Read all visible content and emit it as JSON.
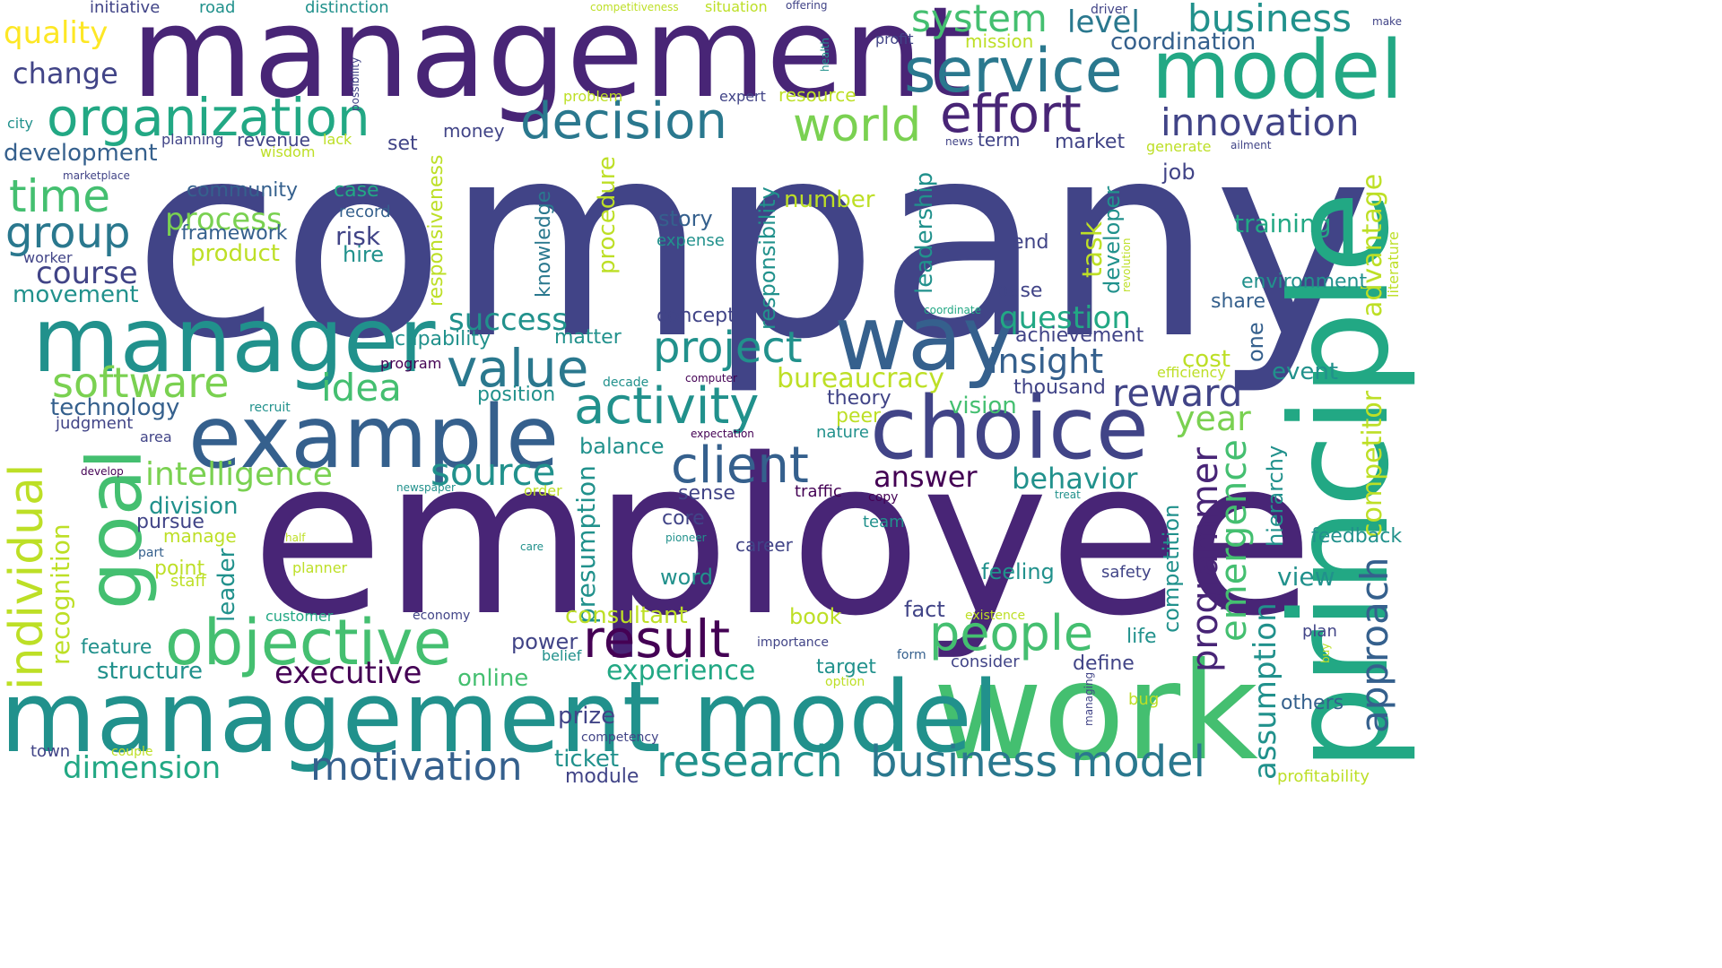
{
  "palette": {
    "c1": "#440154",
    "c2": "#482576",
    "c3": "#414487",
    "c4": "#35608d",
    "c5": "#2a788e",
    "c6": "#21918c",
    "c7": "#22a884",
    "c8": "#44bf70",
    "c9": "#7ad151",
    "c10": "#bddf26",
    "c11": "#fde725"
  },
  "words": [
    {
      "text": "company",
      "color": "#414487"
    },
    {
      "text": "management",
      "color": "#482576"
    },
    {
      "text": "employee",
      "color": "#482576"
    },
    {
      "text": "principle",
      "color": "#22a884"
    },
    {
      "text": "work",
      "color": "#44bf70"
    },
    {
      "text": "management model",
      "color": "#21918c"
    },
    {
      "text": "manager",
      "color": "#21918c"
    },
    {
      "text": "example",
      "color": "#35608d"
    },
    {
      "text": "choice",
      "color": "#414487"
    },
    {
      "text": "way",
      "color": "#35608d"
    },
    {
      "text": "model",
      "color": "#22a884"
    },
    {
      "text": "service",
      "color": "#2a788e"
    },
    {
      "text": "goal",
      "color": "#44bf70"
    },
    {
      "text": "objective",
      "color": "#44bf70"
    },
    {
      "text": "decision",
      "color": "#2a788e"
    },
    {
      "text": "organization",
      "color": "#22a884"
    },
    {
      "text": "effort",
      "color": "#482576"
    },
    {
      "text": "world",
      "color": "#7ad151"
    },
    {
      "text": "activity",
      "color": "#21918c"
    },
    {
      "text": "value",
      "color": "#2a788e"
    },
    {
      "text": "result",
      "color": "#440154"
    },
    {
      "text": "client",
      "color": "#35608d"
    },
    {
      "text": "people",
      "color": "#44bf70"
    },
    {
      "text": "research",
      "color": "#21918c"
    },
    {
      "text": "business model",
      "color": "#2a788e"
    },
    {
      "text": "business",
      "color": "#21918c"
    },
    {
      "text": "system",
      "color": "#44bf70"
    },
    {
      "text": "innovation",
      "color": "#414487"
    },
    {
      "text": "project",
      "color": "#21918c"
    },
    {
      "text": "time",
      "color": "#44bf70"
    },
    {
      "text": "group",
      "color": "#2a788e"
    },
    {
      "text": "software",
      "color": "#7ad151"
    },
    {
      "text": "individual",
      "color": "#bddf26"
    },
    {
      "text": "motivation",
      "color": "#35608d"
    },
    {
      "text": "source",
      "color": "#21918c"
    },
    {
      "text": "idea",
      "color": "#44bf70"
    },
    {
      "text": "reward",
      "color": "#414487"
    },
    {
      "text": "year",
      "color": "#7ad151"
    },
    {
      "text": "approach",
      "color": "#35608d"
    },
    {
      "text": "programmer",
      "color": "#482576"
    },
    {
      "text": "emergence",
      "color": "#44bf70"
    },
    {
      "text": "insight",
      "color": "#35608d"
    },
    {
      "text": "quality",
      "color": "#fde725"
    },
    {
      "text": "change",
      "color": "#414487"
    },
    {
      "text": "intelligence",
      "color": "#7ad151"
    },
    {
      "text": "dimension",
      "color": "#22a884"
    },
    {
      "text": "executive",
      "color": "#440154"
    },
    {
      "text": "experience",
      "color": "#22a884"
    },
    {
      "text": "question",
      "color": "#22a884"
    },
    {
      "text": "success",
      "color": "#21918c"
    },
    {
      "text": "level",
      "color": "#2a788e"
    },
    {
      "text": "coordination",
      "color": "#35608d"
    },
    {
      "text": "process",
      "color": "#7ad151"
    },
    {
      "text": "course",
      "color": "#414487"
    },
    {
      "text": "bureaucracy",
      "color": "#bddf26"
    },
    {
      "text": "competitor",
      "color": "#bddf26"
    },
    {
      "text": "advantage",
      "color": "#bddf26"
    },
    {
      "text": "assumption",
      "color": "#21918c"
    },
    {
      "text": "answer",
      "color": "#440154"
    },
    {
      "text": "behavior",
      "color": "#21918c"
    },
    {
      "text": "activity",
      "color": "#21918c"
    },
    {
      "text": "development",
      "color": "#35608d"
    },
    {
      "text": "movement",
      "color": "#21918c"
    },
    {
      "text": "recognition",
      "color": "#bddf26"
    },
    {
      "text": "presumption",
      "color": "#21918c"
    },
    {
      "text": "consultant",
      "color": "#bddf26"
    },
    {
      "text": "leadership",
      "color": "#21918c"
    },
    {
      "text": "responsibility",
      "color": "#21918c"
    },
    {
      "text": "procedure",
      "color": "#bddf26"
    },
    {
      "text": "knowledge",
      "color": "#2a788e"
    },
    {
      "text": "responsiveness",
      "color": "#bddf26"
    },
    {
      "text": "product",
      "color": "#bddf26"
    },
    {
      "text": "framework",
      "color": "#35608d"
    },
    {
      "text": "community",
      "color": "#35608d"
    },
    {
      "text": "case",
      "color": "#22a884"
    },
    {
      "text": "risk",
      "color": "#414487"
    },
    {
      "text": "hire",
      "color": "#21918c"
    },
    {
      "text": "record",
      "color": "#35608d"
    },
    {
      "text": "story",
      "color": "#35608d"
    },
    {
      "text": "expense",
      "color": "#21918c"
    },
    {
      "text": "number",
      "color": "#bddf26"
    },
    {
      "text": "task",
      "color": "#bddf26"
    },
    {
      "text": "developer",
      "color": "#21918c"
    },
    {
      "text": "end",
      "color": "#414487"
    },
    {
      "text": "base",
      "color": "#414487"
    },
    {
      "text": "job",
      "color": "#414487"
    },
    {
      "text": "training",
      "color": "#22a884"
    },
    {
      "text": "environment",
      "color": "#21918c"
    },
    {
      "text": "share",
      "color": "#35608d"
    },
    {
      "text": "one",
      "color": "#35608d"
    },
    {
      "text": "cost",
      "color": "#bddf26"
    },
    {
      "text": "event",
      "color": "#21918c"
    },
    {
      "text": "thousand",
      "color": "#414487"
    },
    {
      "text": "achievement",
      "color": "#414487"
    },
    {
      "text": "vision",
      "color": "#44bf70"
    },
    {
      "text": "theory",
      "color": "#414487"
    },
    {
      "text": "peer",
      "color": "#bddf26"
    },
    {
      "text": "nature",
      "color": "#21918c"
    },
    {
      "text": "concept",
      "color": "#414487"
    },
    {
      "text": "matter",
      "color": "#21918c"
    },
    {
      "text": "capability",
      "color": "#21918c"
    },
    {
      "text": "program",
      "color": "#440154"
    },
    {
      "text": "position",
      "color": "#21918c"
    },
    {
      "text": "balance",
      "color": "#21918c"
    },
    {
      "text": "technology",
      "color": "#35608d"
    },
    {
      "text": "judgment",
      "color": "#414487"
    },
    {
      "text": "area",
      "color": "#414487"
    },
    {
      "text": "division",
      "color": "#21918c"
    },
    {
      "text": "pursue",
      "color": "#414487"
    },
    {
      "text": "manage",
      "color": "#bddf26"
    },
    {
      "text": "point",
      "color": "#bddf26"
    },
    {
      "text": "staff",
      "color": "#bddf26"
    },
    {
      "text": "part",
      "color": "#35608d"
    },
    {
      "text": "leader",
      "color": "#21918c"
    },
    {
      "text": "feature",
      "color": "#21918c"
    },
    {
      "text": "structure",
      "color": "#21918c"
    },
    {
      "text": "customer",
      "color": "#22a884"
    },
    {
      "text": "power",
      "color": "#414487"
    },
    {
      "text": "belief",
      "color": "#21918c"
    },
    {
      "text": "online",
      "color": "#44bf70"
    },
    {
      "text": "prize",
      "color": "#414487"
    },
    {
      "text": "ticket",
      "color": "#21918c"
    },
    {
      "text": "module",
      "color": "#414487"
    },
    {
      "text": "competency",
      "color": "#414487"
    },
    {
      "text": "economy",
      "color": "#414487"
    },
    {
      "text": "book",
      "color": "#bddf26"
    },
    {
      "text": "fact",
      "color": "#414487"
    },
    {
      "text": "target",
      "color": "#21918c"
    },
    {
      "text": "option",
      "color": "#bddf26"
    },
    {
      "text": "importance",
      "color": "#414487"
    },
    {
      "text": "form",
      "color": "#35608d"
    },
    {
      "text": "consider",
      "color": "#414487"
    },
    {
      "text": "define",
      "color": "#414487"
    },
    {
      "text": "sense",
      "color": "#414487"
    },
    {
      "text": "traffic",
      "color": "#440154"
    },
    {
      "text": "copy",
      "color": "#440154"
    },
    {
      "text": "core",
      "color": "#414487"
    },
    {
      "text": "team",
      "color": "#21918c"
    },
    {
      "text": "career",
      "color": "#414487"
    },
    {
      "text": "word",
      "color": "#21918c"
    },
    {
      "text": "feeling",
      "color": "#21918c"
    },
    {
      "text": "safety",
      "color": "#414487"
    },
    {
      "text": "view",
      "color": "#21918c"
    },
    {
      "text": "hierarchy",
      "color": "#21918c"
    },
    {
      "text": "feedback",
      "color": "#21918c"
    },
    {
      "text": "competition",
      "color": "#21918c"
    },
    {
      "text": "existence",
      "color": "#bddf26"
    },
    {
      "text": "life",
      "color": "#21918c"
    },
    {
      "text": "plan",
      "color": "#414487"
    },
    {
      "text": "buy",
      "color": "#bddf26"
    },
    {
      "text": "bug",
      "color": "#bddf26"
    },
    {
      "text": "managing",
      "color": "#414487"
    },
    {
      "text": "others",
      "color": "#35608d"
    },
    {
      "text": "profitability",
      "color": "#bddf26"
    },
    {
      "text": "town",
      "color": "#414487"
    },
    {
      "text": "couple",
      "color": "#bddf26"
    },
    {
      "text": "initiative",
      "color": "#414487"
    },
    {
      "text": "road",
      "color": "#21918c"
    },
    {
      "text": "distinction",
      "color": "#21918c"
    },
    {
      "text": "competitiveness",
      "color": "#bddf26"
    },
    {
      "text": "situation",
      "color": "#bddf26"
    },
    {
      "text": "offering",
      "color": "#414487"
    },
    {
      "text": "profit",
      "color": "#414487"
    },
    {
      "text": "health",
      "color": "#21918c"
    },
    {
      "text": "mission",
      "color": "#bddf26"
    },
    {
      "text": "driver",
      "color": "#414487"
    },
    {
      "text": "make",
      "color": "#414487"
    },
    {
      "text": "possibility",
      "color": "#414487"
    },
    {
      "text": "city",
      "color": "#21918c"
    },
    {
      "text": "problem",
      "color": "#bddf26"
    },
    {
      "text": "expert",
      "color": "#414487"
    },
    {
      "text": "resource",
      "color": "#bddf26"
    },
    {
      "text": "planning",
      "color": "#414487"
    },
    {
      "text": "revenue",
      "color": "#414487"
    },
    {
      "text": "money",
      "color": "#414487"
    },
    {
      "text": "set",
      "color": "#414487"
    },
    {
      "text": "lack",
      "color": "#bddf26"
    },
    {
      "text": "wisdom",
      "color": "#bddf26"
    },
    {
      "text": "term",
      "color": "#414487"
    },
    {
      "text": "market",
      "color": "#414487"
    },
    {
      "text": "news",
      "color": "#414487"
    },
    {
      "text": "generate",
      "color": "#bddf26"
    },
    {
      "text": "ailment",
      "color": "#414487"
    },
    {
      "text": "marketplace",
      "color": "#414487"
    },
    {
      "text": "worker",
      "color": "#414487"
    },
    {
      "text": "revolution",
      "color": "#bddf26"
    },
    {
      "text": "coordinate",
      "color": "#22a884"
    },
    {
      "text": "literature",
      "color": "#bddf26"
    },
    {
      "text": "recruit",
      "color": "#21918c"
    },
    {
      "text": "decade",
      "color": "#21918c"
    },
    {
      "text": "computer",
      "color": "#440154"
    },
    {
      "text": "efficiency",
      "color": "#bddf26"
    },
    {
      "text": "expectation",
      "color": "#440154"
    },
    {
      "text": "develop",
      "color": "#440154"
    },
    {
      "text": "newspaper",
      "color": "#21918c"
    },
    {
      "text": "order",
      "color": "#bddf26"
    },
    {
      "text": "treat",
      "color": "#21918c"
    },
    {
      "text": "half",
      "color": "#bddf26"
    },
    {
      "text": "care",
      "color": "#21918c"
    },
    {
      "text": "pioneer",
      "color": "#21918c"
    },
    {
      "text": "planner",
      "color": "#bddf26"
    }
  ]
}
